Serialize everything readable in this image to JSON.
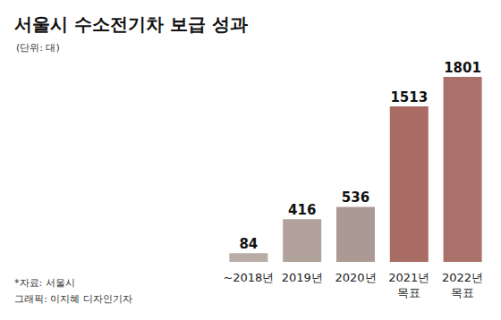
{
  "chart_data": {
    "type": "bar",
    "title": "서울시 수소전기차 보급 성과",
    "subtitle": "(단위: 대)",
    "categories": [
      "~2018년",
      "2019년",
      "2020년",
      "2021년\n목표",
      "2022년\n목표"
    ],
    "values": [
      84,
      416,
      536,
      1513,
      1801
    ],
    "colors": [
      "#b9aba5",
      "#b1a29b",
      "#aa9a93",
      "#a96c64",
      "#a97169"
    ],
    "data_labels": true,
    "tick_labels": "x",
    "grid": false,
    "notes": [
      "*자료: 서울시",
      "그래픽: 이지혜 디자인기자"
    ]
  }
}
